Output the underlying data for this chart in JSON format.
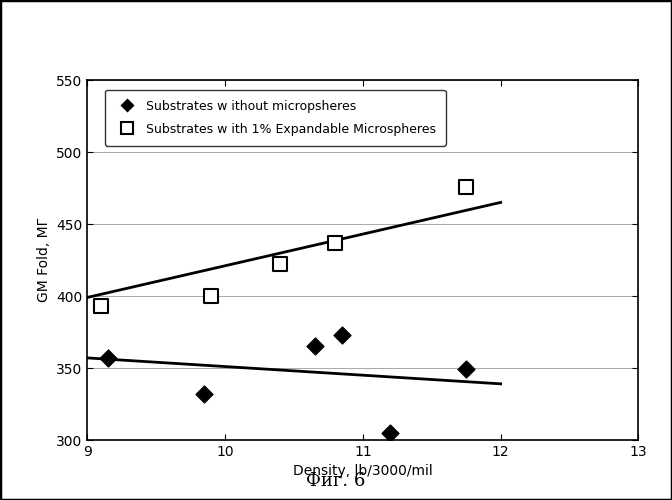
{
  "xlabel": "Density, lb/3000/mil",
  "ylabel": "GM Fold, МГ",
  "xlim": [
    9,
    13
  ],
  "ylim": [
    300,
    550
  ],
  "xticks": [
    9,
    10,
    11,
    12,
    13
  ],
  "yticks": [
    300,
    350,
    400,
    450,
    500,
    550
  ],
  "series1_label": "Substrates w ithout micropsheres",
  "series1_x": [
    9.15,
    9.85,
    10.65,
    10.85,
    11.2,
    11.75
  ],
  "series1_y": [
    357,
    332,
    365,
    373,
    305,
    349
  ],
  "series1_marker": "D",
  "series1_markersize": 7,
  "series2_label": "Substrates w ith 1% Expandable Microspheres",
  "series2_x": [
    9.1,
    9.9,
    10.4,
    10.8,
    11.75
  ],
  "series2_y": [
    393,
    400,
    422,
    437,
    476
  ],
  "series2_marker": "s",
  "series2_markersize": 9,
  "trendline1_x": [
    9.0,
    12.0
  ],
  "trendline1_y": [
    357,
    339
  ],
  "trendline2_x": [
    9.0,
    12.0
  ],
  "trendline2_y": [
    399,
    465
  ],
  "caption": "Фиг. 6",
  "background_color": "#ffffff",
  "outer_border_color": "#000000"
}
